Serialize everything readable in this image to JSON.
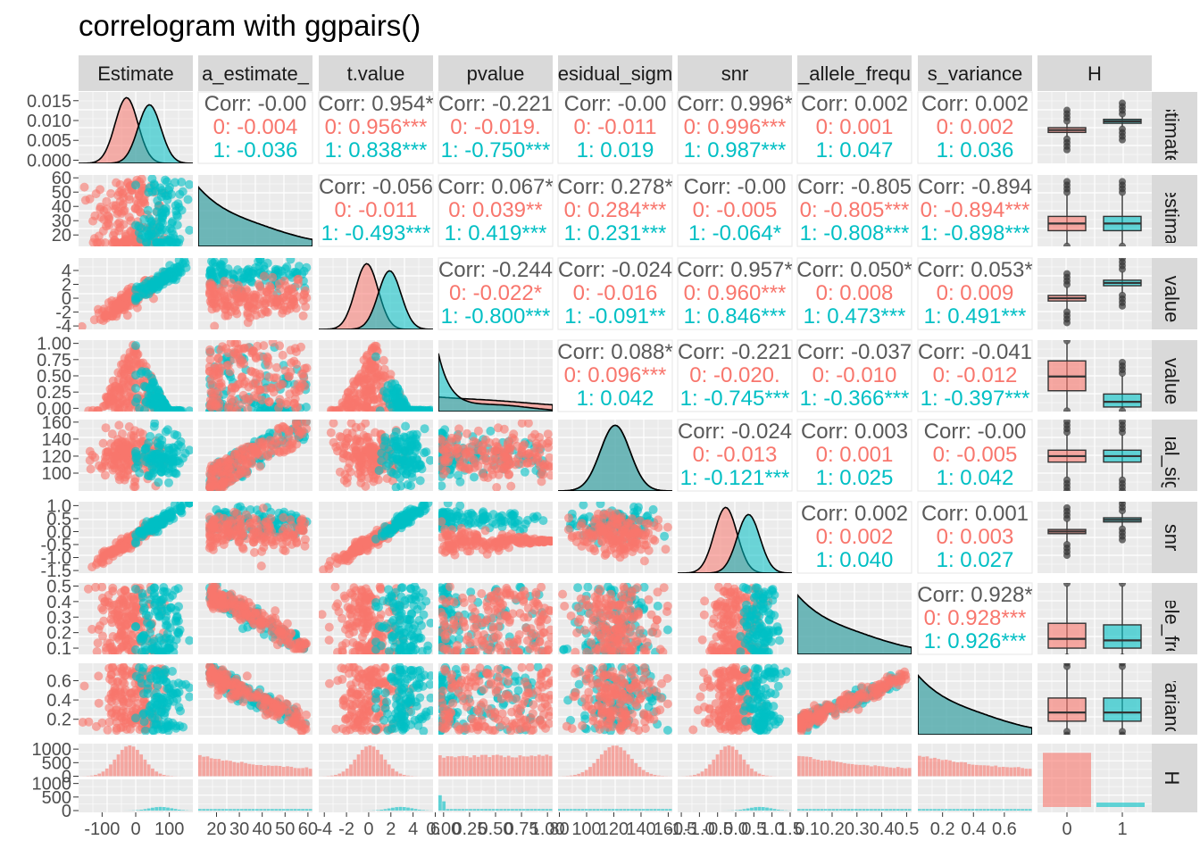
{
  "title": "correlogram with ggpairs()",
  "colors": {
    "group0": "#F8766D",
    "group1": "#00BFC4",
    "corr_overall": "#595959",
    "panel_bg": "#EBEBEB",
    "strip_bg": "#D9D9D9",
    "grid": "#FFFFFF"
  },
  "chart_data": {
    "type": "scatter",
    "layout": "pairs-matrix",
    "variables": [
      "Estimate",
      "sigma_estimate_",
      "t.value",
      "pvalue",
      "residual_sigma",
      "snr",
      "_allele_freq",
      "s_variance",
      "H"
    ],
    "column_strips": [
      "Estimate",
      "a_estimate_",
      "t.value",
      "pvalue",
      "esidual_sigm",
      "snr",
      "_allele_frequ",
      "s_variance",
      "H"
    ],
    "row_strips": [
      "Estimate",
      "_estima",
      "t.value",
      "pvalue",
      "dual_sig",
      "snr",
      "allele_fre",
      "_varianc",
      "H"
    ],
    "group_variable": "H",
    "groups": [
      "0",
      "1"
    ],
    "axis_ticks": {
      "Estimate": {
        "labels": [
          "-100",
          "0",
          "100"
        ],
        "values": [
          -100,
          0,
          100
        ],
        "range": [
          -170,
          170
        ]
      },
      "sigma_estimate_": {
        "labels": [
          "20",
          "30",
          "40",
          "50",
          "60"
        ],
        "values": [
          20,
          30,
          40,
          50,
          60
        ],
        "range": [
          12,
          62
        ]
      },
      "t.value": {
        "labels": [
          "-4",
          "-2",
          "0",
          "2",
          "4",
          "6"
        ],
        "values": [
          -4,
          -2,
          0,
          2,
          4,
          6
        ],
        "range": [
          -4.5,
          5.8
        ]
      },
      "pvalue": {
        "labels": [
          "0.00",
          "0.25",
          "0.50",
          "0.75",
          "1.00"
        ],
        "values": [
          0,
          0.25,
          0.5,
          0.75,
          1.0
        ],
        "range": [
          -0.05,
          1.05
        ]
      },
      "residual_sigma": {
        "labels": [
          "80",
          "100",
          "120",
          "140",
          "160"
        ],
        "values": [
          80,
          100,
          120,
          140,
          160
        ],
        "range": [
          79,
          163
        ]
      },
      "snr": {
        "labels": [
          "-1.5",
          "-1.0",
          "-0.5",
          "0.0",
          "0.5",
          "1.0",
          "1.5"
        ],
        "values": [
          -1.5,
          -1.0,
          -0.5,
          0.0,
          0.5,
          1.0,
          1.5
        ],
        "range": [
          -1.6,
          1.55
        ]
      },
      "allele_freq": {
        "labels": [
          "0.1",
          "0.2",
          "0.3",
          "0.4",
          "0.5"
        ],
        "values": [
          0.1,
          0.2,
          0.3,
          0.4,
          0.5
        ],
        "range": [
          0.06,
          0.52
        ]
      },
      "variance": {
        "labels": [
          "0.2",
          "0.4",
          "0.6"
        ],
        "values": [
          0.2,
          0.4,
          0.6
        ],
        "range": [
          0.04,
          0.78
        ]
      },
      "H": {
        "labels": [
          "0",
          "1"
        ],
        "values": [
          0,
          1
        ]
      }
    },
    "row_axis_ticks": {
      "Estimate": {
        "labels": [
          "0.000",
          "0.005",
          "0.010",
          "0.015"
        ],
        "values": [
          0,
          0.005,
          0.01,
          0.015
        ],
        "range": [
          -0.0008,
          0.0172
        ]
      },
      "sigma_estimate_": {
        "labels": [
          "20",
          "30",
          "40",
          "50",
          "60"
        ],
        "values": [
          20,
          30,
          40,
          50,
          60
        ],
        "range": [
          12,
          62
        ]
      },
      "t.value": {
        "labels": [
          "-4",
          "-2",
          "0",
          "2",
          "4"
        ],
        "values": [
          -4,
          -2,
          0,
          2,
          4
        ],
        "range": [
          -4.5,
          5.8
        ]
      },
      "pvalue": {
        "labels": [
          "0.00",
          "0.25",
          "0.50",
          "0.75",
          "1.00"
        ],
        "values": [
          0,
          0.25,
          0.5,
          0.75,
          1.0
        ],
        "range": [
          -0.05,
          1.05
        ]
      },
      "residual_sigma": {
        "labels": [
          "100",
          "120",
          "140",
          "160"
        ],
        "values": [
          100,
          120,
          140,
          160
        ],
        "range": [
          79,
          163
        ]
      },
      "snr": {
        "labels": [
          "-1.5",
          "-1.0",
          "-0.5",
          "0.0",
          "0.5",
          "1.0"
        ],
        "values": [
          -1.5,
          -1.0,
          -0.5,
          0.0,
          0.5,
          1.0
        ],
        "range": [
          -1.6,
          1.15
        ]
      },
      "allele_freq": {
        "labels": [
          "0.1",
          "0.2",
          "0.3",
          "0.4",
          "0.5"
        ],
        "values": [
          0.1,
          0.2,
          0.3,
          0.4,
          0.5
        ],
        "range": [
          0.06,
          0.52
        ]
      },
      "variance": {
        "labels": [
          "0.2",
          "0.4",
          "0.6"
        ],
        "values": [
          0.2,
          0.4,
          0.6
        ],
        "range": [
          0.04,
          0.78
        ]
      },
      "H_count": {
        "labels": [
          "0",
          "500",
          "1000"
        ],
        "values": [
          0,
          500,
          1000
        ],
        "range": [
          0,
          1250
        ]
      }
    },
    "correlations": [
      {
        "row": 0,
        "col": 1,
        "overall": "Corr: -0.00",
        "g0": "0: -0.004",
        "g1": "1: -0.036"
      },
      {
        "row": 0,
        "col": 2,
        "overall": "Corr: 0.954*",
        "g0": "0: 0.956***",
        "g1": "1: 0.838***"
      },
      {
        "row": 0,
        "col": 3,
        "overall": "Corr: -0.221",
        "g0": "0: -0.019.",
        "g1": "1: -0.750***"
      },
      {
        "row": 0,
        "col": 4,
        "overall": "Corr: -0.00",
        "g0": "0: -0.011",
        "g1": "1: 0.019"
      },
      {
        "row": 0,
        "col": 5,
        "overall": "Corr: 0.996*",
        "g0": "0: 0.996***",
        "g1": "1: 0.987***"
      },
      {
        "row": 0,
        "col": 6,
        "overall": "Corr: 0.002",
        "g0": "0: 0.001",
        "g1": "1: 0.047"
      },
      {
        "row": 0,
        "col": 7,
        "overall": "Corr: 0.002",
        "g0": "0: 0.002",
        "g1": "1: 0.036"
      },
      {
        "row": 1,
        "col": 2,
        "overall": "Corr: -0.056",
        "g0": "0: -0.011",
        "g1": "1: -0.493***"
      },
      {
        "row": 1,
        "col": 3,
        "overall": "Corr: 0.067*",
        "g0": "0: 0.039**",
        "g1": "1: 0.419***"
      },
      {
        "row": 1,
        "col": 4,
        "overall": "Corr: 0.278*",
        "g0": "0: 0.284***",
        "g1": "1: 0.231***"
      },
      {
        "row": 1,
        "col": 5,
        "overall": "Corr: -0.00",
        "g0": "0: -0.005",
        "g1": "1: -0.064*"
      },
      {
        "row": 1,
        "col": 6,
        "overall": "Corr: -0.805",
        "g0": "0: -0.805***",
        "g1": "1: -0.808***"
      },
      {
        "row": 1,
        "col": 7,
        "overall": "Corr: -0.894",
        "g0": "0: -0.894***",
        "g1": "1: -0.898***"
      },
      {
        "row": 2,
        "col": 3,
        "overall": "Corr: -0.244",
        "g0": "0: -0.022*",
        "g1": "1: -0.800***"
      },
      {
        "row": 2,
        "col": 4,
        "overall": "Corr: -0.024",
        "g0": "0: -0.016",
        "g1": "1: -0.091**"
      },
      {
        "row": 2,
        "col": 5,
        "overall": "Corr: 0.957*",
        "g0": "0: 0.960***",
        "g1": "1: 0.846***"
      },
      {
        "row": 2,
        "col": 6,
        "overall": "Corr: 0.050*",
        "g0": "0: 0.008",
        "g1": "1: 0.473***"
      },
      {
        "row": 2,
        "col": 7,
        "overall": "Corr: 0.053*",
        "g0": "0: 0.009",
        "g1": "1: 0.491***"
      },
      {
        "row": 3,
        "col": 4,
        "overall": "Corr: 0.088*",
        "g0": "0: 0.096***",
        "g1": "1: 0.042"
      },
      {
        "row": 3,
        "col": 5,
        "overall": "Corr: -0.221",
        "g0": "0: -0.020.",
        "g1": "1: -0.745***"
      },
      {
        "row": 3,
        "col": 6,
        "overall": "Corr: -0.037",
        "g0": "0: -0.010",
        "g1": "1: -0.366***"
      },
      {
        "row": 3,
        "col": 7,
        "overall": "Corr: -0.041",
        "g0": "0: -0.012",
        "g1": "1: -0.397***"
      },
      {
        "row": 4,
        "col": 5,
        "overall": "Corr: -0.024",
        "g0": "0: -0.013",
        "g1": "1: -0.121***"
      },
      {
        "row": 4,
        "col": 6,
        "overall": "Corr: 0.003",
        "g0": "0: 0.001",
        "g1": "1: 0.025"
      },
      {
        "row": 4,
        "col": 7,
        "overall": "Corr: -0.00",
        "g0": "0: -0.005",
        "g1": "1: 0.042"
      },
      {
        "row": 5,
        "col": 6,
        "overall": "Corr: 0.002",
        "g0": "0: 0.002",
        "g1": "1: 0.040"
      },
      {
        "row": 5,
        "col": 7,
        "overall": "Corr: 0.001",
        "g0": "0: 0.003",
        "g1": "1: 0.027"
      },
      {
        "row": 6,
        "col": 7,
        "overall": "Corr: 0.928*",
        "g0": "0: 0.928***",
        "g1": "1: 0.926***"
      }
    ],
    "H_counts": {
      "0": 1100,
      "1": 90
    },
    "boxplots": [
      {
        "var": "Estimate",
        "g0": [
          0.006,
          0.007,
          0.0076,
          0.0082,
          0.0092
        ],
        "g1": [
          0.0085,
          0.0093,
          0.0098,
          0.0103,
          0.011
        ]
      },
      {
        "var": "sigma_estimate_",
        "g0": [
          14,
          23,
          28,
          33,
          48
        ],
        "g1": [
          14,
          23,
          28,
          33,
          48
        ]
      },
      {
        "var": "t.value",
        "g0": [
          -1.6,
          -0.4,
          0.0,
          0.4,
          1.6
        ],
        "g1": [
          0.8,
          1.8,
          2.2,
          2.6,
          3.8
        ]
      },
      {
        "var": "pvalue",
        "g0": [
          0.0,
          0.27,
          0.49,
          0.73,
          1.0
        ],
        "g1": [
          0.0,
          0.02,
          0.1,
          0.22,
          0.5
        ]
      },
      {
        "var": "residual_sigma",
        "g0": [
          95,
          113,
          120,
          127,
          145
        ],
        "g1": [
          95,
          113,
          120,
          127,
          145
        ]
      },
      {
        "var": "snr",
        "g0": [
          -0.4,
          -0.08,
          0.0,
          0.08,
          0.4
        ],
        "g1": [
          0.2,
          0.37,
          0.45,
          0.53,
          0.7
        ]
      },
      {
        "var": "allele_freq",
        "g0": [
          0.06,
          0.1,
          0.16,
          0.26,
          0.5
        ],
        "g1": [
          0.06,
          0.1,
          0.15,
          0.25,
          0.5
        ]
      },
      {
        "var": "variance",
        "g0": [
          0.1,
          0.18,
          0.27,
          0.42,
          0.72
        ],
        "g1": [
          0.1,
          0.18,
          0.27,
          0.42,
          0.72
        ]
      }
    ]
  }
}
